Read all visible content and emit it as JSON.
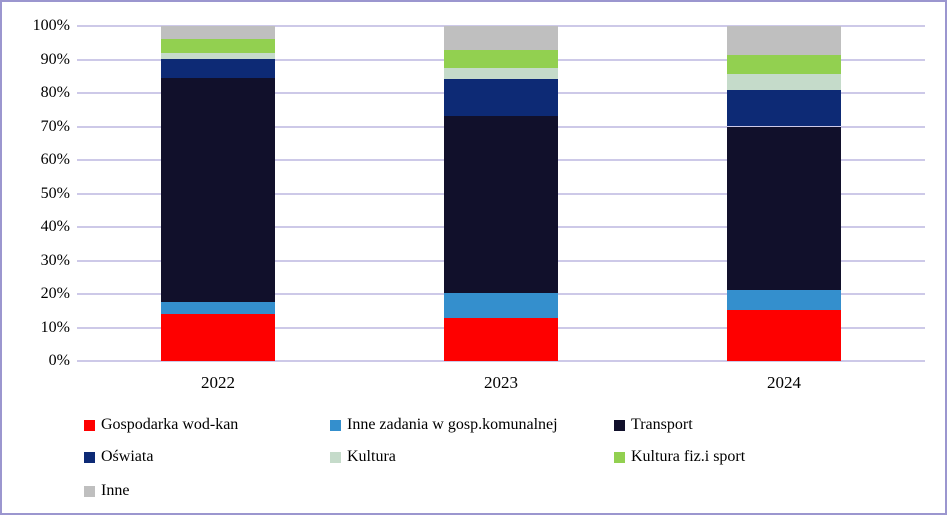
{
  "chart_data": {
    "type": "bar",
    "subtype": "stacked-100-percent",
    "title": "",
    "xlabel": "",
    "ylabel": "",
    "categories": [
      "2022",
      "2023",
      "2024"
    ],
    "series": [
      {
        "name": "Gospodarka wod-kan",
        "color": "#fe0000",
        "values": [
          14.0,
          12.8,
          15.3
        ]
      },
      {
        "name": "Inne zadania w gosp.komunalnej",
        "color": "#348fcd",
        "values": [
          3.6,
          7.4,
          6.0
        ]
      },
      {
        "name": "Transport",
        "color": "#11102b",
        "values": [
          66.9,
          52.9,
          48.7
        ]
      },
      {
        "name": "Oświata",
        "color": "#0d2a75",
        "values": [
          5.6,
          11.1,
          11.0
        ]
      },
      {
        "name": "Kultura",
        "color": "#c5dbca",
        "values": [
          1.9,
          3.4,
          4.7
        ]
      },
      {
        "name": "Kultura fiz.i sport",
        "color": "#92d050",
        "values": [
          4.0,
          5.1,
          5.7
        ]
      },
      {
        "name": "Inne",
        "color": "#bfbfbf",
        "values": [
          4.0,
          7.3,
          8.6
        ]
      }
    ],
    "y_axis": {
      "min": 0,
      "max": 100,
      "step": 10,
      "unit": "%",
      "tick_labels": [
        "0%",
        "10%",
        "20%",
        "30%",
        "40%",
        "50%",
        "60%",
        "70%",
        "80%",
        "90%",
        "100%"
      ]
    },
    "grid": true,
    "legend_position": "bottom",
    "style_colors": {
      "gridline": "#cdc9e8",
      "frame_border": "#9b96cf",
      "background": "#ffffff",
      "text": "#000000"
    }
  }
}
